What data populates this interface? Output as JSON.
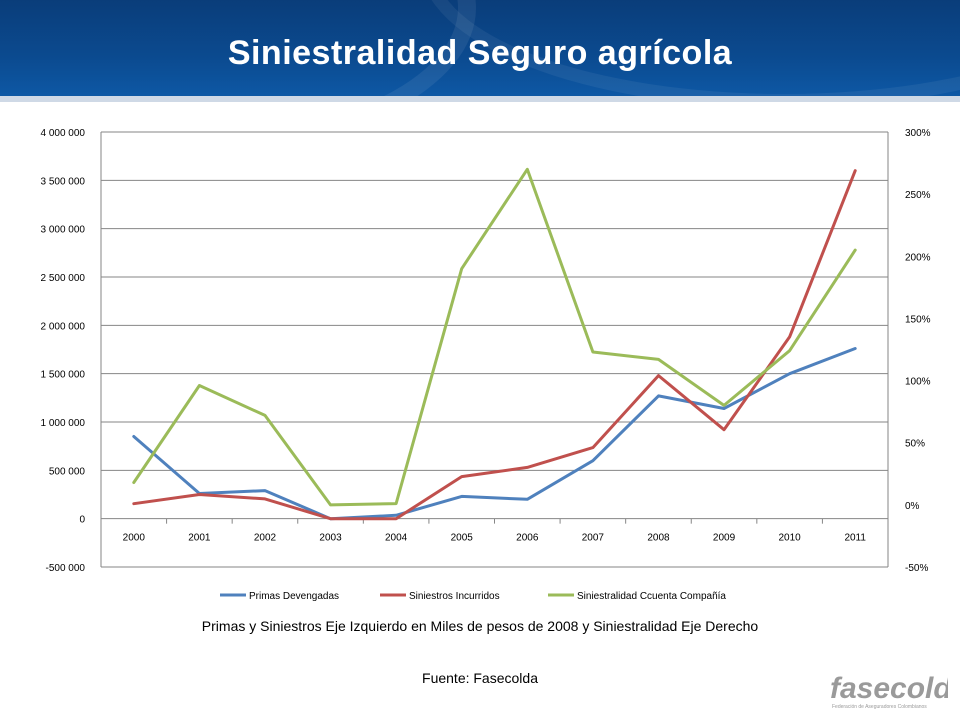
{
  "title": "Siniestralidad Seguro agrícola",
  "caption": "Primas y Siniestros Eje Izquierdo en Miles de pesos de 2008 y Siniestralidad Eje  Derecho",
  "source": "Fuente: Fasecolda",
  "logo": {
    "name": "fasecolda",
    "subtitle": "Federación de Aseguradores Colombianos"
  },
  "colors": {
    "header": "#0b4a8f",
    "primas": "#4f81bd",
    "siniestros": "#c0504d",
    "siniestralidad": "#9bbb59",
    "grid": "#868686"
  },
  "chart_data": {
    "type": "line",
    "title": "",
    "categories": [
      "2000",
      "2001",
      "2002",
      "2003",
      "2004",
      "2005",
      "2006",
      "2007",
      "2008",
      "2009",
      "2010",
      "2011"
    ],
    "y_left": {
      "lim": [
        -500000,
        4000000
      ],
      "ticks": [
        -500000,
        0,
        500000,
        1000000,
        1500000,
        2000000,
        2500000,
        3000000,
        3500000,
        4000000
      ],
      "tick_labels": [
        "-500 000",
        "0",
        "500 000",
        "1 000 000",
        "1 500 000",
        "2 000 000",
        "2 500 000",
        "3 000 000",
        "3 500 000",
        "4 000 000"
      ]
    },
    "y_right": {
      "lim": [
        -50,
        300
      ],
      "ticks": [
        -50,
        0,
        50,
        100,
        150,
        200,
        250,
        300
      ],
      "tick_labels": [
        "-50%",
        "0%",
        "50%",
        "100%",
        "150%",
        "200%",
        "250%",
        "300%"
      ]
    },
    "grid": true,
    "legend_position": "bottom",
    "series": [
      {
        "name": "Primas Devengadas",
        "axis": "left",
        "color": "#4f81bd",
        "values": [
          850000,
          260000,
          290000,
          0,
          35000,
          230000,
          200000,
          600000,
          1270000,
          1140000,
          1500000,
          1760000
        ]
      },
      {
        "name": "Siniestros Incurridos",
        "axis": "left",
        "color": "#c0504d",
        "values": [
          155000,
          250000,
          205000,
          0,
          0,
          435000,
          530000,
          735000,
          1480000,
          920000,
          1880000,
          3600000
        ]
      },
      {
        "name": "Siniestralidad  Ccuenta Compañía",
        "axis": "right",
        "color": "#9bbb59",
        "values": [
          18,
          96,
          72,
          0,
          1,
          190,
          270,
          123,
          117,
          80,
          124,
          205
        ]
      }
    ]
  }
}
